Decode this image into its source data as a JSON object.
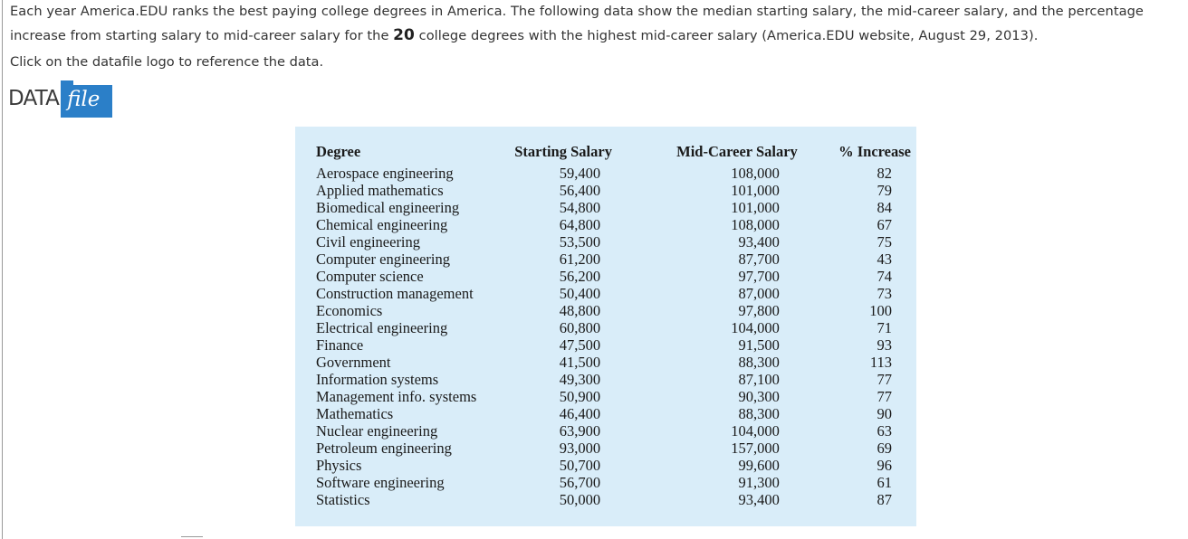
{
  "intro": {
    "part1": "Each year America.EDU ranks the best paying college degrees in America. The following data show the median starting salary, the mid-career salary, and the percentage increase from starting salary to mid-career salary for the ",
    "number": "20",
    "part2": " college degrees with the highest mid-career salary (America.EDU website, August 29, 2013)."
  },
  "click_text": "Click on the datafile logo to reference the data.",
  "logo": {
    "word": "DATA",
    "tag": "file",
    "color": "#2b7fc8"
  },
  "table": {
    "headers": [
      "Degree",
      "Starting Salary",
      "Mid-Career Salary",
      "% Increase"
    ],
    "rows": [
      [
        "Aerospace engineering",
        "59,400",
        "108,000",
        "82"
      ],
      [
        "Applied mathematics",
        "56,400",
        "101,000",
        "79"
      ],
      [
        "Biomedical engineering",
        "54,800",
        "101,000",
        "84"
      ],
      [
        "Chemical engineering",
        "64,800",
        "108,000",
        "67"
      ],
      [
        "Civil engineering",
        "53,500",
        "93,400",
        "75"
      ],
      [
        "Computer engineering",
        "61,200",
        "87,700",
        "43"
      ],
      [
        "Computer science",
        "56,200",
        "97,700",
        "74"
      ],
      [
        "Construction management",
        "50,400",
        "87,000",
        "73"
      ],
      [
        "Economics",
        "48,800",
        "97,800",
        "100"
      ],
      [
        "Electrical engineering",
        "60,800",
        "104,000",
        "71"
      ],
      [
        "Finance",
        "47,500",
        "91,500",
        "93"
      ],
      [
        "Government",
        "41,500",
        "88,300",
        "113"
      ],
      [
        "Information systems",
        "49,300",
        "87,100",
        "77"
      ],
      [
        "Management info. systems",
        "50,900",
        "90,300",
        "77"
      ],
      [
        "Mathematics",
        "46,400",
        "88,300",
        "90"
      ],
      [
        "Nuclear engineering",
        "63,900",
        "104,000",
        "63"
      ],
      [
        "Petroleum engineering",
        "93,000",
        "157,000",
        "69"
      ],
      [
        "Physics",
        "50,700",
        "99,600",
        "96"
      ],
      [
        "Software engineering",
        "56,700",
        "91,300",
        "61"
      ],
      [
        "Statistics",
        "50,000",
        "93,400",
        "87"
      ]
    ]
  },
  "colors": {
    "panel_background": "#d9edf9",
    "text": "#333333"
  }
}
